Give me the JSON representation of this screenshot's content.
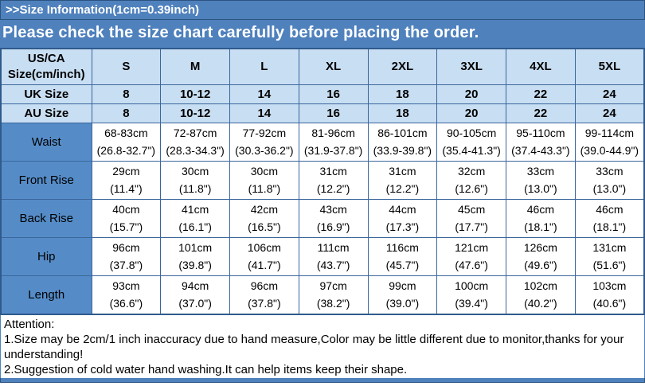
{
  "colors": {
    "banner_blue": "#4f81bd",
    "banner_border": "#2b5380",
    "cell_light_blue": "#c8def2",
    "cell_label_blue": "#558cc8",
    "table_border": "#3a669c",
    "text_white": "#ffffff",
    "text_black": "#000000"
  },
  "header": {
    "title": ">>Size Information(1cm=0.39inch)",
    "subtitle": "Please check the size chart carefully before placing the order."
  },
  "size_table": {
    "corner_label": "US/CA Size(cm/inch)",
    "size_columns": [
      "S",
      "M",
      "L",
      "XL",
      "2XL",
      "3XL",
      "4XL",
      "5XL"
    ],
    "conversion_rows": [
      {
        "label": "UK Size",
        "values": [
          "8",
          "10-12",
          "14",
          "16",
          "18",
          "20",
          "22",
          "24"
        ]
      },
      {
        "label": "AU Size",
        "values": [
          "8",
          "10-12",
          "14",
          "16",
          "18",
          "20",
          "22",
          "24"
        ]
      }
    ],
    "measurement_rows": [
      {
        "label": "Waist",
        "values": [
          {
            "cm": "68-83cm",
            "inch": "(26.8-32.7\")"
          },
          {
            "cm": "72-87cm",
            "inch": "(28.3-34.3\")"
          },
          {
            "cm": "77-92cm",
            "inch": "(30.3-36.2\")"
          },
          {
            "cm": "81-96cm",
            "inch": "(31.9-37.8\")"
          },
          {
            "cm": "86-101cm",
            "inch": "(33.9-39.8\")"
          },
          {
            "cm": "90-105cm",
            "inch": "(35.4-41.3\")"
          },
          {
            "cm": "95-110cm",
            "inch": "(37.4-43.3\")"
          },
          {
            "cm": "99-114cm",
            "inch": "(39.0-44.9\")"
          }
        ]
      },
      {
        "label": "Front Rise",
        "values": [
          {
            "cm": "29cm",
            "inch": "(11.4\")"
          },
          {
            "cm": "30cm",
            "inch": "(11.8\")"
          },
          {
            "cm": "30cm",
            "inch": "(11.8\")"
          },
          {
            "cm": "31cm",
            "inch": "(12.2\")"
          },
          {
            "cm": "31cm",
            "inch": "(12.2\")"
          },
          {
            "cm": "32cm",
            "inch": "(12.6\")"
          },
          {
            "cm": "33cm",
            "inch": "(13.0\")"
          },
          {
            "cm": "33cm",
            "inch": "(13.0\")"
          }
        ]
      },
      {
        "label": "Back Rise",
        "values": [
          {
            "cm": "40cm",
            "inch": "(15.7\")"
          },
          {
            "cm": "41cm",
            "inch": "(16.1\")"
          },
          {
            "cm": "42cm",
            "inch": "(16.5\")"
          },
          {
            "cm": "43cm",
            "inch": "(16.9\")"
          },
          {
            "cm": "44cm",
            "inch": "(17.3\")"
          },
          {
            "cm": "45cm",
            "inch": "(17.7\")"
          },
          {
            "cm": "46cm",
            "inch": "(18.1\")"
          },
          {
            "cm": "46cm",
            "inch": "(18.1\")"
          }
        ]
      },
      {
        "label": "Hip",
        "values": [
          {
            "cm": "96cm",
            "inch": "(37.8\")"
          },
          {
            "cm": "101cm",
            "inch": "(39.8\")"
          },
          {
            "cm": "106cm",
            "inch": "(41.7\")"
          },
          {
            "cm": "111cm",
            "inch": "(43.7\")"
          },
          {
            "cm": "116cm",
            "inch": "(45.7\")"
          },
          {
            "cm": "121cm",
            "inch": "(47.6\")"
          },
          {
            "cm": "126cm",
            "inch": "(49.6\")"
          },
          {
            "cm": "131cm",
            "inch": "(51.6\")"
          }
        ]
      },
      {
        "label": "Length",
        "values": [
          {
            "cm": "93cm",
            "inch": "(36.6\")"
          },
          {
            "cm": "94cm",
            "inch": "(37.0\")"
          },
          {
            "cm": "96cm",
            "inch": "(37.8\")"
          },
          {
            "cm": "97cm",
            "inch": "(38.2\")"
          },
          {
            "cm": "99cm",
            "inch": "(39.0\")"
          },
          {
            "cm": "100cm",
            "inch": "(39.4\")"
          },
          {
            "cm": "102cm",
            "inch": "(40.2\")"
          },
          {
            "cm": "103cm",
            "inch": "(40.6\")"
          }
        ]
      }
    ]
  },
  "notes": {
    "heading": "Attention:",
    "items": [
      "1.Size may be 2cm/1 inch inaccuracy due to hand measure,Color may be little different due to monitor,thanks for your understanding!",
      "2.Suggestion of cold water hand washing.It can help items keep their shape."
    ]
  }
}
